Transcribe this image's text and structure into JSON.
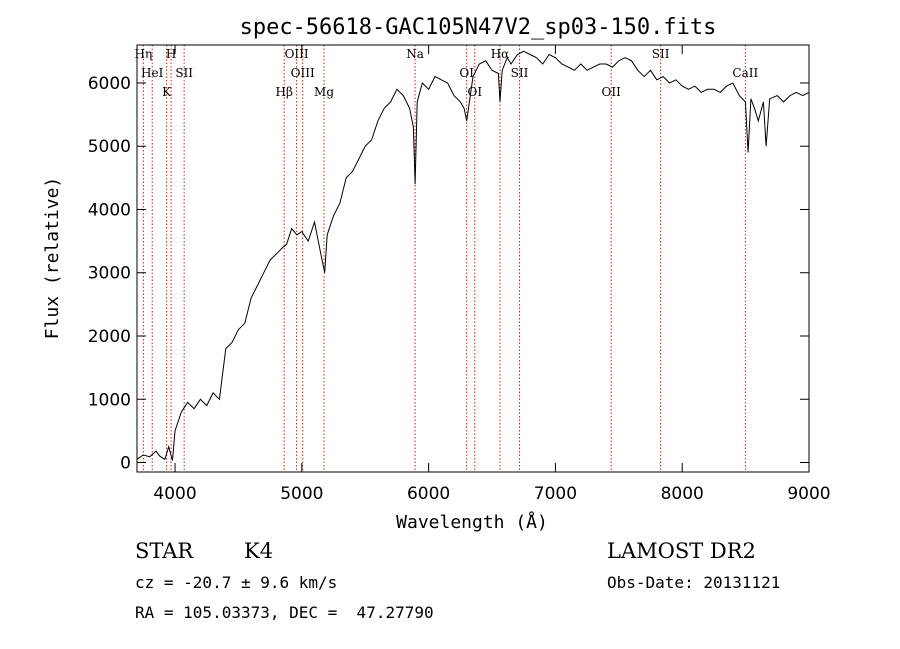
{
  "chart_data": {
    "type": "line",
    "title": "spec-56618-GAC105N47V2_sp03-150.fits",
    "xlabel": "Wavelength (Å)",
    "ylabel": "Flux (relative)",
    "xlim": [
      3700,
      9000
    ],
    "ylim": [
      -150,
      6600
    ],
    "x_ticks": [
      4000,
      5000,
      6000,
      7000,
      8000,
      9000
    ],
    "y_ticks": [
      0,
      1000,
      2000,
      3000,
      4000,
      5000,
      6000
    ],
    "series": [
      {
        "color": "#000000",
        "x": [
          3700,
          3750,
          3800,
          3850,
          3880,
          3920,
          3950,
          3980,
          4000,
          4050,
          4100,
          4150,
          4200,
          4250,
          4300,
          4350,
          4400,
          4450,
          4500,
          4550,
          4600,
          4650,
          4700,
          4750,
          4800,
          4850,
          4880,
          4920,
          4960,
          5000,
          5050,
          5100,
          5150,
          5180,
          5200,
          5250,
          5300,
          5350,
          5400,
          5450,
          5500,
          5550,
          5600,
          5650,
          5700,
          5750,
          5800,
          5850,
          5880,
          5893,
          5910,
          5950,
          6000,
          6050,
          6100,
          6150,
          6200,
          6250,
          6280,
          6300,
          6350,
          6400,
          6450,
          6500,
          6550,
          6563,
          6580,
          6620,
          6650,
          6700,
          6750,
          6800,
          6850,
          6900,
          6950,
          7000,
          7050,
          7100,
          7150,
          7200,
          7250,
          7300,
          7350,
          7400,
          7450,
          7500,
          7550,
          7600,
          7650,
          7700,
          7750,
          7800,
          7850,
          7900,
          7950,
          8000,
          8050,
          8100,
          8150,
          8200,
          8250,
          8300,
          8350,
          8400,
          8450,
          8498,
          8520,
          8542,
          8570,
          8600,
          8640,
          8662,
          8690,
          8750,
          8800,
          8850,
          8900,
          8950,
          9000
        ],
        "y": [
          50,
          120,
          90,
          180,
          100,
          50,
          250,
          30,
          500,
          800,
          950,
          850,
          1000,
          900,
          1100,
          1000,
          1800,
          1900,
          2100,
          2200,
          2600,
          2800,
          3000,
          3200,
          3300,
          3400,
          3450,
          3700,
          3600,
          3650,
          3500,
          3800,
          3300,
          3000,
          3600,
          3900,
          4100,
          4500,
          4600,
          4800,
          5000,
          5100,
          5400,
          5600,
          5700,
          5900,
          5800,
          5600,
          5300,
          4400,
          5700,
          6000,
          5900,
          6100,
          6050,
          6000,
          5800,
          5700,
          5600,
          5400,
          6100,
          6300,
          6350,
          6200,
          6150,
          5700,
          6200,
          6400,
          6300,
          6450,
          6500,
          6450,
          6400,
          6300,
          6450,
          6400,
          6300,
          6250,
          6200,
          6300,
          6200,
          6250,
          6300,
          6300,
          6250,
          6350,
          6400,
          6350,
          6200,
          6100,
          6200,
          6050,
          6100,
          6000,
          6050,
          5950,
          5900,
          5950,
          5850,
          5900,
          5900,
          5850,
          5950,
          6000,
          5800,
          5700,
          4900,
          5750,
          5600,
          5400,
          5700,
          5000,
          5750,
          5800,
          5700,
          5800,
          5850,
          5800,
          5850
        ]
      }
    ],
    "line_markers": [
      {
        "x": 3750,
        "label": "Hη"
      },
      {
        "x": 3820,
        "label": "HeI"
      },
      {
        "x": 3934,
        "label": "K"
      },
      {
        "x": 3969,
        "label": "H"
      },
      {
        "x": 4072,
        "label": "SII"
      },
      {
        "x": 4861,
        "label": "Hβ"
      },
      {
        "x": 4959,
        "label": "OIII"
      },
      {
        "x": 5007,
        "label": "OIII"
      },
      {
        "x": 5175,
        "label": "Mg"
      },
      {
        "x": 5893,
        "label": "Na"
      },
      {
        "x": 6300,
        "label": "OI"
      },
      {
        "x": 6364,
        "label": "OI"
      },
      {
        "x": 6563,
        "label": "Hα"
      },
      {
        "x": 6717,
        "label": "SII"
      },
      {
        "x": 7440,
        "label": "OII"
      },
      {
        "x": 7830,
        "label": "SII"
      },
      {
        "x": 8498,
        "label": "CaII"
      }
    ],
    "marker_color": "#cc2200"
  },
  "info": {
    "class_label": "STAR",
    "subclass": "K4",
    "survey": "LAMOST DR2",
    "redshift": "cz = -20.7 ± 9.6 km/s",
    "obs_date": "Obs-Date: 20131121",
    "coords": "RA = 105.03373, DEC =  47.27790"
  }
}
